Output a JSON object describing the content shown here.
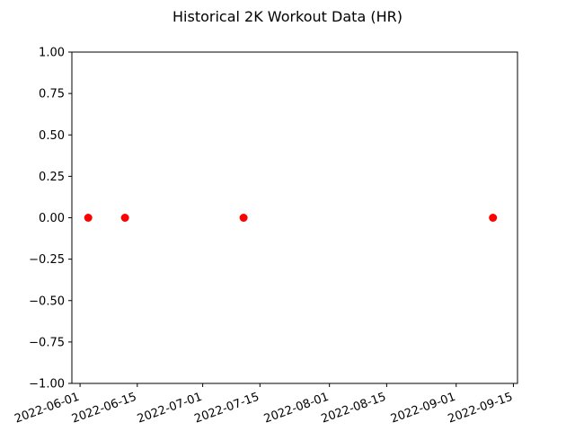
{
  "chart_data": {
    "type": "scatter",
    "title": "Historical 2K Workout Data (HR)",
    "xlabel": "",
    "ylabel": "",
    "x_axis_type": "date",
    "xlim": [
      "2022-05-30",
      "2022-09-16"
    ],
    "ylim": [
      -1.0,
      1.0
    ],
    "grid": false,
    "x_ticks": [
      "2022-06-01",
      "2022-06-15",
      "2022-07-01",
      "2022-07-15",
      "2022-08-01",
      "2022-08-15",
      "2022-09-01",
      "2022-09-15"
    ],
    "x_tick_rotation_deg": 20,
    "y_ticks": [
      "1.00",
      "0.75",
      "0.50",
      "0.25",
      "0.00",
      "−0.25",
      "−0.50",
      "−0.75",
      "−1.00"
    ],
    "marker_color": "#ff0000",
    "points": [
      {
        "x": "2022-06-03",
        "y": 0.0
      },
      {
        "x": "2022-06-12",
        "y": 0.0
      },
      {
        "x": "2022-07-11",
        "y": 0.0
      },
      {
        "x": "2022-09-10",
        "y": 0.0
      }
    ]
  }
}
